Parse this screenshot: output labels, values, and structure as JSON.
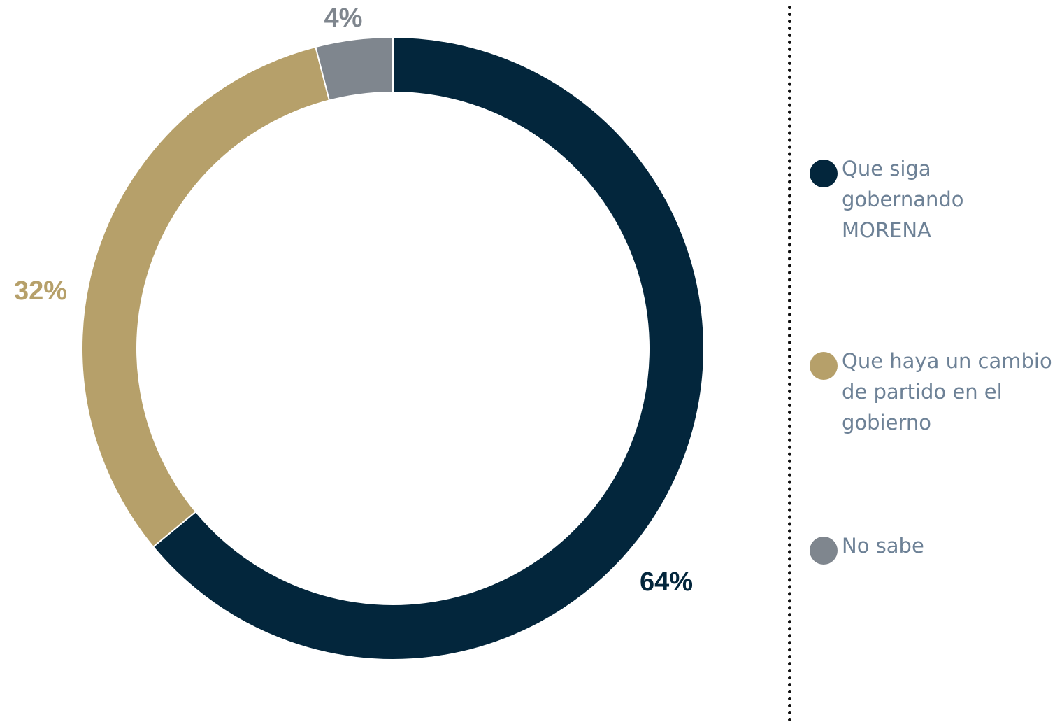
{
  "chart_data": {
    "type": "pie",
    "variant": "donut",
    "title": "",
    "categories": [
      "Que siga gobernando MORENA",
      "Que haya un cambio de partido en el gobierno",
      "No sabe"
    ],
    "values": [
      64,
      32,
      4
    ],
    "value_labels": [
      "64%",
      "32%",
      "4%"
    ],
    "colors": [
      "#03263c",
      "#b6a06a",
      "#7f868e"
    ],
    "legend": "right"
  }
}
